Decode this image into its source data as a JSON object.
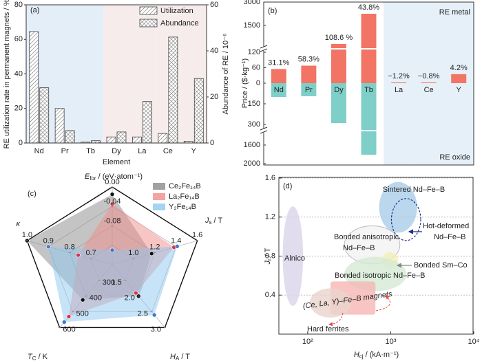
{
  "chart_data": [
    {
      "type": "bar",
      "panel": "(a)",
      "x_label": "Element",
      "y_label": "RE utilization rate in permanent magnets / %",
      "y2_label": "Abundance of RE / 10⁻⁶",
      "categories": [
        "Nd",
        "Pr",
        "Tb",
        "Dy",
        "La",
        "Ce",
        "Y"
      ],
      "category_colors": [
        "#e3eef8",
        "#e3eef8",
        "#e3eef8",
        "#f7ecec",
        "#f7ecec",
        "#f7ecec",
        "#f7ecec"
      ],
      "series": [
        {
          "name": "Utilization",
          "color": "#444444",
          "pattern": "diagonal",
          "values": [
            64.5,
            20,
            0.5,
            3.5,
            3.5,
            5.5,
            1
          ]
        },
        {
          "name": "Abundance",
          "color": "#444444",
          "pattern": "cross",
          "axis": "y2",
          "values": [
            24,
            5.4,
            1,
            4.8,
            18,
            46,
            28
          ]
        }
      ],
      "ylim": [
        0,
        80
      ],
      "yticks": [
        0,
        20,
        40,
        60,
        80
      ],
      "y2lim": [
        0,
        60
      ],
      "y2ticks": [
        0,
        20,
        40,
        60
      ],
      "legend": "upper right"
    },
    {
      "type": "broken_bar",
      "panel": "(b)",
      "y_label": "Price / ($·kg⁻¹)",
      "categories": [
        "Nd",
        "Pr",
        "Dy",
        "Tb",
        "La",
        "Ce",
        "Y"
      ],
      "category_colors": [
        "#ffffff",
        "#ffffff",
        "#ffffff",
        "#ffffff",
        "#e6f0f8",
        "#e6f0f8",
        "#e6f0f8"
      ],
      "series": [
        {
          "name": "RE metal",
          "color": "#f27465",
          "values": [
            55,
            68,
            310,
            2250,
            3,
            3,
            35
          ]
        },
        {
          "name": "RE oxide",
          "color": "#7fcfc9",
          "axis": "y2",
          "values": [
            100,
            95,
            290,
            1810,
            null,
            null,
            null
          ]
        }
      ],
      "annotations": [
        "31.1%",
        "58.3%",
        "108.6 %",
        "43.8%",
        "−1.2%",
        "−0.8%",
        "4.2%"
      ],
      "ylim": [
        0,
        3000
      ],
      "ybreak": [
        120,
        200
      ],
      "yticks": [
        0,
        60,
        120,
        1500,
        3000
      ],
      "y2lim": [
        0,
        2000
      ],
      "y2break": [
        320,
        1350
      ],
      "y2ticks": [
        150,
        300,
        1600,
        2000
      ]
    },
    {
      "type": "radar",
      "panel": "(c)",
      "axes": [
        {
          "name": "E",
          "sub": "for",
          "unit": " / (eV·atom⁻¹)",
          "lim": [
            -0.16,
            0
          ],
          "ticks": [
            -0.08,
            -0.04,
            {
              "value": 0,
              "label": "0.00"
            }
          ]
        },
        {
          "name": "J",
          "sub": "s",
          "unit": " / T",
          "lim": [
            0.8,
            1.6
          ],
          "ticks": [
            {
              "value": 1,
              "label": "1.0"
            },
            1.2,
            1.4,
            1.6
          ]
        },
        {
          "name": "H",
          "sub": "A",
          "unit": " / T",
          "lim": [
            1,
            3
          ],
          "ticks": [
            1.5,
            {
              "value": 2,
              "label": "2.0"
            },
            2.5,
            {
              "value": 3,
              "label": "3.0"
            }
          ]
        },
        {
          "name": "T",
          "sub": "C",
          "unit": " / K",
          "lim": [
            200,
            600
          ],
          "ticks": [
            300,
            400,
            500,
            600
          ]
        },
        {
          "name": "κ",
          "lim": [
            0.6,
            1
          ],
          "ticks": [
            0.7,
            0.8,
            0.9,
            {
              "value": 1,
              "label": "1.0"
            }
          ]
        }
      ],
      "series": [
        {
          "name": "Ce₂Fe₁₄B",
          "color": "#8a8a8a",
          "marker": "#111111",
          "values": [
            -0.015,
            1.17,
            2.0,
            424,
            1.0
          ]
        },
        {
          "name": "La₂Fe₁₄B",
          "color": "#f28b8b",
          "marker": "#d8334a",
          "values": [
            -0.035,
            1.38,
            1.9,
            530,
            0.76
          ]
        },
        {
          "name": "Y₂Fe₁₄B",
          "color": "#8fc8ef",
          "marker": "#3a78d0",
          "values": [
            -0.13,
            1.41,
            2.6,
            565,
            0.9
          ]
        }
      ],
      "legend": "upper right"
    },
    {
      "type": "region",
      "panel": "(d)",
      "x_label": {
        "name": "H",
        "sub": "cj",
        "unit": " / (kA·m⁻¹)"
      },
      "y_label": {
        "name": "J",
        "sub": "r",
        "unit": " / T"
      },
      "xlog": true,
      "xlim": [
        45,
        10000
      ],
      "xticks": [
        {
          "value": 100,
          "label": "10²"
        },
        {
          "value": 1000,
          "label": "10³"
        },
        {
          "value": 10000,
          "label": "10⁴"
        }
      ],
      "ylim": [
        0,
        1.6
      ],
      "yticks": [
        0.4,
        0.8,
        1.2,
        1.6
      ],
      "grid": true,
      "regions": [
        {
          "label": [
            "Alnico"
          ],
          "color": "#d9d5ea",
          "x": [
            50,
            88
          ],
          "y": [
            0.29,
            1.31
          ]
        },
        {
          "label": [
            "Sintered Nd–Fe–B"
          ],
          "color": "#a9cdea",
          "x": [
            725,
            2080
          ],
          "y": [
            1.04,
            1.56
          ]
        },
        {
          "label": [
            "Hot-deformed",
            "Nd–Fe–B"
          ],
          "color": "#1f2f8a",
          "dashed": true,
          "x": [
            1020,
            2300
          ],
          "y": [
            0.96,
            1.39
          ]
        },
        {
          "label": [
            "Bonded anisotropic",
            "Nd–Fe–B"
          ],
          "color": "#f2f2f2",
          "x": [
            277,
            1290
          ],
          "y": [
            0.72,
            1.11
          ]
        },
        {
          "label": [
            "Bonded Sm–Co"
          ],
          "color": "#f5efb6",
          "x": [
            785,
            1230
          ],
          "y": [
            0.67,
            0.84
          ]
        },
        {
          "label": [
            "Bonded isotropic Nd–Fe–B"
          ],
          "color": "#d5ead4",
          "x": [
            277,
            1550
          ],
          "y": [
            0.44,
            0.79
          ]
        },
        {
          "label": [
            "(Ce, La, Y)–Fe–B magnets"
          ],
          "color": "#f6b7b5",
          "label_color": "#e6473c",
          "shape": "rect",
          "x": [
            188,
            655
          ],
          "y": [
            0.2,
            0.54
          ]
        },
        {
          "label": [
            "Hard ferrites"
          ],
          "color": "#ead3cd",
          "x": [
            106,
            335
          ],
          "y": [
            0.17,
            0.47
          ]
        }
      ]
    }
  ]
}
